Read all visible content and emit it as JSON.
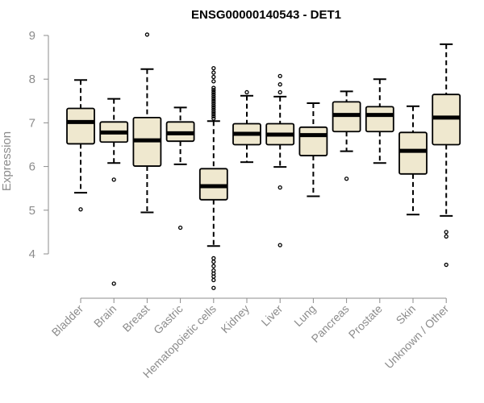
{
  "chart_data": {
    "type": "box",
    "title": "ENSG00000140543 - DET1",
    "xlabel": "",
    "ylabel": "Expression",
    "ylim": [
      3.2,
      9.2
    ],
    "yticks": [
      4,
      5,
      6,
      7,
      8,
      9
    ],
    "categories": [
      "Bladder",
      "Brain",
      "Breast",
      "Gastric",
      "Hematopoietic cells",
      "Kidney",
      "Liver",
      "Lung",
      "Pancreas",
      "Prostate",
      "Skin",
      "Unknown / Other"
    ],
    "boxes": [
      {
        "name": "Bladder",
        "whisker_low": 5.4,
        "q1": 6.52,
        "median": 7.02,
        "q3": 7.33,
        "whisker_high": 7.98,
        "outliers": [
          5.02
        ]
      },
      {
        "name": "Brain",
        "whisker_low": 6.08,
        "q1": 6.56,
        "median": 6.78,
        "q3": 7.02,
        "whisker_high": 7.55,
        "outliers": [
          5.7,
          3.32
        ]
      },
      {
        "name": "Breast",
        "whisker_low": 4.95,
        "q1": 6.01,
        "median": 6.6,
        "q3": 7.12,
        "whisker_high": 8.23,
        "outliers": [
          9.02
        ]
      },
      {
        "name": "Gastric",
        "whisker_low": 6.05,
        "q1": 6.58,
        "median": 6.76,
        "q3": 7.02,
        "whisker_high": 7.35,
        "outliers": [
          4.6
        ]
      },
      {
        "name": "Hematopoietic cells",
        "whisker_low": 4.18,
        "q1": 5.24,
        "median": 5.55,
        "q3": 5.95,
        "whisker_high": 7.04,
        "outliers": [
          7.1,
          7.15,
          7.2,
          7.25,
          7.3,
          7.35,
          7.4,
          7.45,
          7.5,
          7.55,
          7.6,
          7.65,
          7.7,
          7.75,
          7.8,
          7.95,
          8.05,
          8.15,
          8.25,
          3.9,
          3.82,
          3.72,
          3.62,
          3.55,
          3.48,
          3.4,
          3.22
        ]
      },
      {
        "name": "Kidney",
        "whisker_low": 6.1,
        "q1": 6.5,
        "median": 6.75,
        "q3": 6.98,
        "whisker_high": 7.62,
        "outliers": [
          7.7
        ]
      },
      {
        "name": "Liver",
        "whisker_low": 5.99,
        "q1": 6.5,
        "median": 6.73,
        "q3": 6.98,
        "whisker_high": 7.6,
        "outliers": [
          7.7,
          7.88,
          8.07,
          5.52,
          4.2
        ]
      },
      {
        "name": "Lung",
        "whisker_low": 5.32,
        "q1": 6.25,
        "median": 6.72,
        "q3": 6.9,
        "whisker_high": 7.45,
        "outliers": []
      },
      {
        "name": "Pancreas",
        "whisker_low": 6.35,
        "q1": 6.8,
        "median": 7.18,
        "q3": 7.48,
        "whisker_high": 7.72,
        "outliers": [
          5.72
        ]
      },
      {
        "name": "Prostate",
        "whisker_low": 6.08,
        "q1": 6.8,
        "median": 7.18,
        "q3": 7.37,
        "whisker_high": 8.0,
        "outliers": []
      },
      {
        "name": "Skin",
        "whisker_low": 4.9,
        "q1": 5.83,
        "median": 6.36,
        "q3": 6.78,
        "whisker_high": 7.38,
        "outliers": []
      },
      {
        "name": "Unknown / Other",
        "whisker_low": 4.87,
        "q1": 6.5,
        "median": 7.12,
        "q3": 7.65,
        "whisker_high": 8.8,
        "outliers": [
          4.5,
          4.4,
          3.75
        ]
      }
    ],
    "box_fill": "#efe8cf",
    "grid": false,
    "legend": "none"
  }
}
